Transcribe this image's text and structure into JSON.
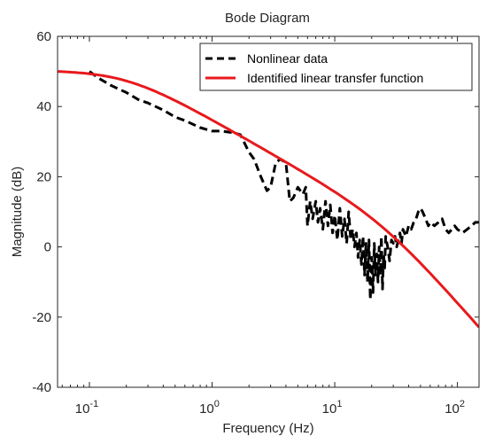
{
  "chart_data": {
    "type": "line",
    "title": "Bode Diagram",
    "xlabel": "Frequency  (Hz)",
    "ylabel": "Magnitude (dB)",
    "x_scale": "log",
    "xlim": [
      0.055,
      150
    ],
    "ylim": [
      -40,
      60
    ],
    "x_ticks": [
      {
        "value": 0.1,
        "base": "10",
        "exp": "-1"
      },
      {
        "value": 1,
        "base": "10",
        "exp": "0"
      },
      {
        "value": 10,
        "base": "10",
        "exp": "1"
      },
      {
        "value": 100,
        "base": "10",
        "exp": "2"
      }
    ],
    "y_ticks": [
      {
        "value": -40,
        "label": "-40"
      },
      {
        "value": -20,
        "label": "-20"
      },
      {
        "value": 0,
        "label": "0"
      },
      {
        "value": 20,
        "label": "20"
      },
      {
        "value": 40,
        "label": "40"
      },
      {
        "value": 60,
        "label": "60"
      }
    ],
    "grid": false,
    "legend_position": "top-right",
    "series": [
      {
        "name": "Nonlinear data",
        "color": "#000000",
        "style": "dashed",
        "x": [
          0.1,
          0.12,
          0.15,
          0.2,
          0.25,
          0.3,
          0.4,
          0.5,
          0.6,
          0.8,
          1.0,
          1.2,
          1.5,
          1.7,
          2.0,
          2.2,
          2.5,
          2.8,
          3.0,
          3.3,
          3.6,
          4.0,
          4.3,
          4.6,
          5.0,
          5.5,
          5.8,
          6.0,
          6.3,
          6.6,
          7.0,
          7.3,
          7.6,
          8.0,
          8.4,
          8.8,
          9.2,
          9.6,
          10,
          10.5,
          11,
          11.5,
          12,
          12.5,
          13,
          13.5,
          14,
          14.5,
          15,
          15.5,
          16,
          16.5,
          17,
          17.5,
          18,
          18.5,
          19,
          19.5,
          20,
          20.5,
          21,
          21.5,
          22,
          22.5,
          23,
          23.5,
          24,
          24.5,
          25,
          25.5,
          26,
          27,
          28,
          29,
          30,
          31,
          32,
          33,
          34,
          35,
          36,
          38,
          40,
          42,
          44,
          46,
          48,
          50,
          52,
          55,
          58,
          60,
          65,
          70,
          75,
          80,
          85,
          90,
          95,
          100,
          110,
          120,
          130,
          140,
          150
        ],
        "y": [
          50,
          48,
          46,
          44,
          42,
          41,
          39,
          37,
          36,
          34,
          33,
          33,
          32.5,
          32,
          27,
          25,
          20,
          16,
          17,
          24,
          25,
          24,
          13,
          14,
          17,
          15,
          17,
          6,
          13,
          8,
          13,
          7,
          11,
          5,
          13,
          6,
          12,
          4,
          9,
          2,
          11,
          3,
          8,
          1,
          10,
          2,
          5,
          0,
          4,
          -3,
          2,
          -5,
          3,
          -8,
          1,
          -10,
          2,
          -15,
          -3,
          -13,
          1,
          -8,
          -2,
          -10,
          0,
          -8,
          3,
          -12,
          -2,
          -6,
          3,
          0,
          -4,
          2,
          1,
          3,
          0,
          2,
          4,
          1,
          5,
          3,
          6,
          5,
          7,
          8,
          10,
          11,
          10,
          8,
          6,
          7,
          6,
          7,
          8,
          5,
          4,
          5,
          6,
          5,
          4,
          5,
          6,
          7,
          7
        ]
      },
      {
        "name": "Identified linear transfer function",
        "color": "#e8191c",
        "style": "solid",
        "model": {
          "dc_gain_db": 50.3,
          "pole1_hz": 0.2,
          "pole2_hz": 25.0
        },
        "x": [],
        "y": []
      }
    ]
  }
}
